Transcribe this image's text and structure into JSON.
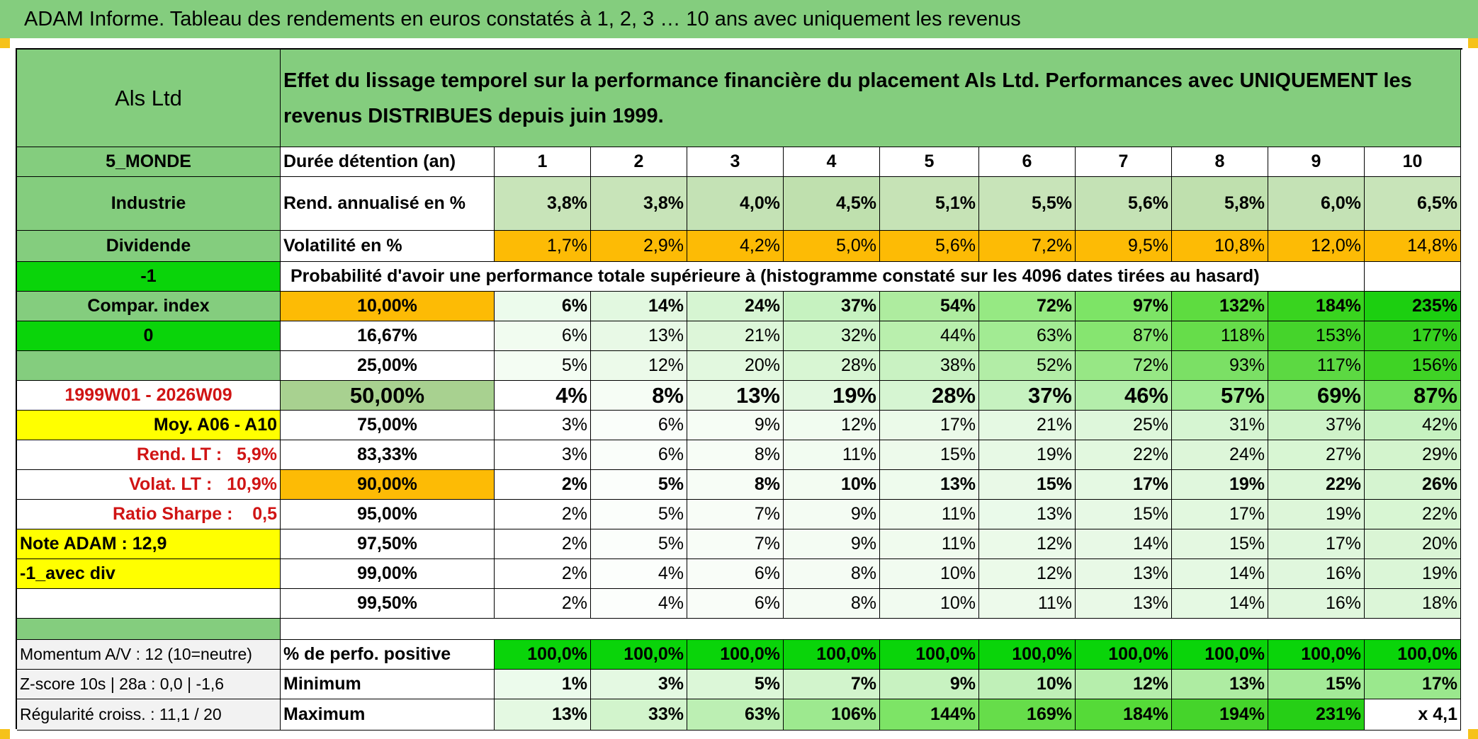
{
  "header": {
    "title": "ADAM Informe. Tableau des rendements en euros constatés à 1, 2, 3 … 10 ans avec uniquement les revenus"
  },
  "colors": {
    "header_green": "#84cd7e",
    "bright_green": "#0ad40a",
    "orange": "#fdbb05",
    "yellow": "#ffff00",
    "accent_red": "#d01414"
  },
  "side": {
    "fund_name": "Als Ltd",
    "zone": "5_MONDE",
    "sector": "Industrie",
    "distribution": "Dividende",
    "flag_1": "-1",
    "compar_label": "Compar. index",
    "flag_2": "0",
    "period": "1999W01 - 2026W09",
    "moy_label": "Moy. A06 - A10",
    "rend_lt": "Rend. LT :   5,9%",
    "volat_lt": "Volat. LT :   10,9%",
    "sharpe": "Ratio Sharpe :    0,5",
    "note": "Note ADAM : 12,9",
    "variant": "-1_avec div",
    "momentum": "Momentum A/V : 12 (10=neutre)",
    "zscore": "Z-score 10s | 28a : 0,0 | -1,6",
    "regularite": "Régularité croiss. : 11,1 / 20"
  },
  "description": "Effet du lissage temporel sur la performance financière du placement Als Ltd. Performances avec UNIQUEMENT les revenus DISTRIBUES depuis juin 1999.",
  "metrics": {
    "duree_label": "Durée détention (an)",
    "years": [
      "1",
      "2",
      "3",
      "4",
      "5",
      "6",
      "7",
      "8",
      "9",
      "10"
    ],
    "rend_label": "Rend. annualisé en %",
    "rend": [
      "3,8%",
      "3,8%",
      "4,0%",
      "4,5%",
      "5,1%",
      "5,5%",
      "5,6%",
      "5,8%",
      "6,0%",
      "6,5%"
    ],
    "vol_label": "Volatilité en %",
    "vol": [
      "1,7%",
      "2,9%",
      "4,2%",
      "5,0%",
      "5,6%",
      "7,2%",
      "9,5%",
      "10,8%",
      "12,0%",
      "14,8%"
    ]
  },
  "probability_heading": "Probabilité d'avoir une performance totale supérieure à (histogramme constaté sur les 4096 dates tirées au hasard)",
  "quantiles": [
    {
      "p": "10,00%",
      "values": [
        "6%",
        "14%",
        "24%",
        "37%",
        "54%",
        "72%",
        "97%",
        "132%",
        "184%",
        "235%"
      ]
    },
    {
      "p": "16,67%",
      "values": [
        "6%",
        "13%",
        "21%",
        "32%",
        "44%",
        "63%",
        "87%",
        "118%",
        "153%",
        "177%"
      ]
    },
    {
      "p": "25,00%",
      "values": [
        "5%",
        "12%",
        "20%",
        "28%",
        "38%",
        "52%",
        "72%",
        "93%",
        "117%",
        "156%"
      ]
    },
    {
      "p": "50,00%",
      "values": [
        "4%",
        "8%",
        "13%",
        "19%",
        "28%",
        "37%",
        "46%",
        "57%",
        "69%",
        "87%"
      ]
    },
    {
      "p": "75,00%",
      "values": [
        "3%",
        "6%",
        "9%",
        "12%",
        "17%",
        "21%",
        "25%",
        "31%",
        "37%",
        "42%"
      ]
    },
    {
      "p": "83,33%",
      "values": [
        "3%",
        "6%",
        "8%",
        "11%",
        "15%",
        "19%",
        "22%",
        "24%",
        "27%",
        "29%"
      ]
    },
    {
      "p": "90,00%",
      "values": [
        "2%",
        "5%",
        "8%",
        "10%",
        "13%",
        "15%",
        "17%",
        "19%",
        "22%",
        "26%"
      ]
    },
    {
      "p": "95,00%",
      "values": [
        "2%",
        "5%",
        "7%",
        "9%",
        "11%",
        "13%",
        "15%",
        "17%",
        "19%",
        "22%"
      ]
    },
    {
      "p": "97,50%",
      "values": [
        "2%",
        "5%",
        "7%",
        "9%",
        "11%",
        "12%",
        "14%",
        "15%",
        "17%",
        "20%"
      ]
    },
    {
      "p": "99,00%",
      "values": [
        "2%",
        "4%",
        "6%",
        "8%",
        "10%",
        "12%",
        "13%",
        "14%",
        "16%",
        "19%"
      ]
    },
    {
      "p": "99,50%",
      "values": [
        "2%",
        "4%",
        "6%",
        "8%",
        "10%",
        "11%",
        "13%",
        "14%",
        "16%",
        "18%"
      ]
    }
  ],
  "summary": {
    "pos_label": "% de perfo. positive",
    "pos": [
      "100,0%",
      "100,0%",
      "100,0%",
      "100,0%",
      "100,0%",
      "100,0%",
      "100,0%",
      "100,0%",
      "100,0%",
      "100,0%"
    ],
    "min_label": "Minimum",
    "min": [
      "1%",
      "3%",
      "5%",
      "7%",
      "9%",
      "10%",
      "12%",
      "13%",
      "15%",
      "17%"
    ],
    "max_label": "Maximum",
    "max": [
      "13%",
      "33%",
      "63%",
      "106%",
      "144%",
      "169%",
      "184%",
      "194%",
      "231%",
      "x 4,1"
    ]
  }
}
